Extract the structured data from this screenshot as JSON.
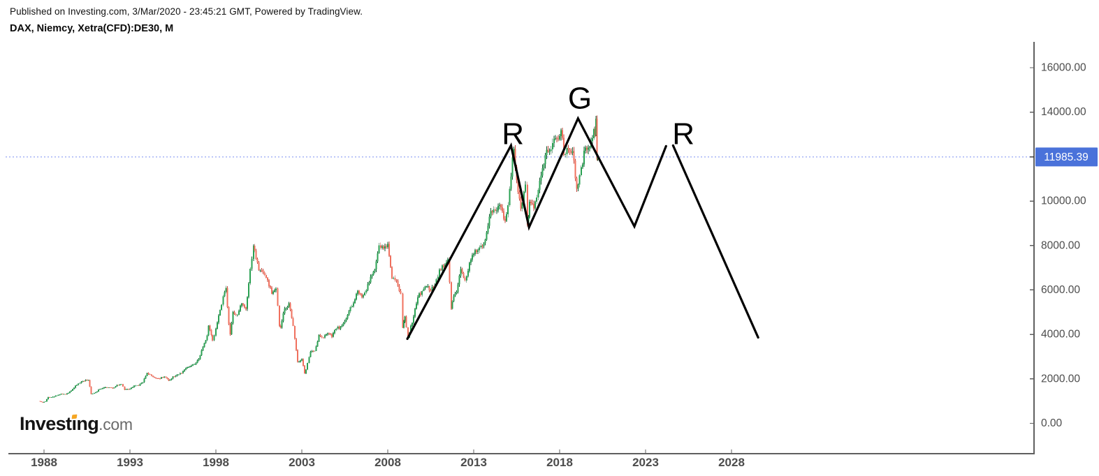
{
  "header": {
    "published_line": "Published on Investing.com, 3/Mar/2020 - 23:45:21 GMT, Powered by TradingView.",
    "symbol_line": "DAX, Niemcy, Xetra(CFD):DE30, M"
  },
  "logo": {
    "prefix": "Invest",
    "dotless_i": "ı",
    "rest": "ng",
    "suffix": ".com"
  },
  "chart_data": {
    "type": "candlestick",
    "title": "DAX, Niemcy, Xetra(CFD):DE30, M",
    "timeframe": "Monthly",
    "last_price": 11985.39,
    "last_price_label": "11985.39",
    "y_axis": {
      "range": [
        0,
        17200
      ],
      "ticks": [
        {
          "value": 16000,
          "label": "16000.00"
        },
        {
          "value": 14000,
          "label": "14000.00"
        },
        {
          "value": 10000,
          "label": "10000.00"
        },
        {
          "value": 8000,
          "label": "8000.00"
        },
        {
          "value": 6000,
          "label": "6000.00"
        },
        {
          "value": 4000,
          "label": "4000.00"
        },
        {
          "value": 2000,
          "label": "2000.00"
        },
        {
          "value": 0,
          "label": "0.00"
        }
      ]
    },
    "x_axis": {
      "tick_years": [
        1988,
        1993,
        1998,
        2003,
        2008,
        2013,
        2018,
        2023,
        2028
      ]
    },
    "anchors_close": [
      [
        1987.7,
        1000
      ],
      [
        1987.92,
        940
      ],
      [
        1988.08,
        980
      ],
      [
        1988.25,
        1180
      ],
      [
        1988.5,
        1190
      ],
      [
        1988.75,
        1250
      ],
      [
        1989.0,
        1328
      ],
      [
        1989.25,
        1300
      ],
      [
        1989.5,
        1430
      ],
      [
        1989.75,
        1600
      ],
      [
        1990.0,
        1790
      ],
      [
        1990.25,
        1900
      ],
      [
        1990.58,
        1950
      ],
      [
        1990.75,
        1320
      ],
      [
        1991.0,
        1398
      ],
      [
        1991.25,
        1540
      ],
      [
        1991.5,
        1620
      ],
      [
        1991.75,
        1610
      ],
      [
        1992.0,
        1578
      ],
      [
        1992.25,
        1720
      ],
      [
        1992.5,
        1760
      ],
      [
        1992.7,
        1510
      ],
      [
        1993.0,
        1545
      ],
      [
        1993.25,
        1690
      ],
      [
        1993.5,
        1700
      ],
      [
        1993.75,
        1850
      ],
      [
        1994.0,
        2267
      ],
      [
        1994.25,
        2133
      ],
      [
        1994.5,
        2025
      ],
      [
        1994.75,
        2012
      ],
      [
        1995.0,
        2107
      ],
      [
        1995.25,
        1923
      ],
      [
        1995.5,
        2100
      ],
      [
        1995.75,
        2187
      ],
      [
        1996.0,
        2254
      ],
      [
        1996.25,
        2486
      ],
      [
        1996.5,
        2561
      ],
      [
        1996.75,
        2652
      ],
      [
        1997.0,
        2889
      ],
      [
        1997.25,
        3429
      ],
      [
        1997.5,
        3953
      ],
      [
        1997.58,
        4400
      ],
      [
        1997.8,
        3730
      ],
      [
        1998.0,
        4250
      ],
      [
        1998.25,
        5097
      ],
      [
        1998.5,
        5897
      ],
      [
        1998.58,
        6100
      ],
      [
        1998.75,
        4474
      ],
      [
        1998.83,
        4000
      ],
      [
        1999.0,
        5002
      ],
      [
        1999.25,
        4884
      ],
      [
        1999.5,
        5379
      ],
      [
        1999.75,
        5150
      ],
      [
        2000.0,
        6958
      ],
      [
        2000.2,
        8000
      ],
      [
        2000.33,
        7400
      ],
      [
        2000.5,
        6898
      ],
      [
        2000.75,
        6798
      ],
      [
        2001.0,
        6434
      ],
      [
        2001.25,
        5830
      ],
      [
        2001.5,
        6058
      ],
      [
        2001.7,
        4400
      ],
      [
        2001.75,
        4308
      ],
      [
        2002.0,
        5160
      ],
      [
        2002.25,
        5397
      ],
      [
        2002.5,
        4383
      ],
      [
        2002.75,
        2769
      ],
      [
        2003.0,
        2893
      ],
      [
        2003.17,
        2250
      ],
      [
        2003.25,
        2424
      ],
      [
        2003.5,
        3221
      ],
      [
        2003.75,
        3257
      ],
      [
        2004.0,
        3965
      ],
      [
        2004.25,
        3857
      ],
      [
        2004.5,
        4053
      ],
      [
        2004.75,
        3893
      ],
      [
        2005.0,
        4256
      ],
      [
        2005.25,
        4348
      ],
      [
        2005.5,
        4586
      ],
      [
        2005.75,
        5044
      ],
      [
        2006.0,
        5408
      ],
      [
        2006.25,
        5970
      ],
      [
        2006.5,
        5683
      ],
      [
        2006.75,
        6004
      ],
      [
        2007.0,
        6597
      ],
      [
        2007.25,
        6917
      ],
      [
        2007.5,
        8007
      ],
      [
        2007.75,
        7861
      ],
      [
        2008.0,
        8067
      ],
      [
        2008.25,
        6535
      ],
      [
        2008.5,
        6418
      ],
      [
        2008.75,
        5831
      ],
      [
        2008.87,
        4300
      ],
      [
        2009.0,
        4810
      ],
      [
        2009.17,
        3850
      ],
      [
        2009.25,
        4085
      ],
      [
        2009.5,
        4809
      ],
      [
        2009.75,
        5675
      ],
      [
        2010.0,
        5957
      ],
      [
        2010.25,
        6154
      ],
      [
        2010.5,
        5966
      ],
      [
        2010.75,
        6229
      ],
      [
        2011.0,
        6914
      ],
      [
        2011.25,
        7041
      ],
      [
        2011.5,
        7376
      ],
      [
        2011.7,
        5150
      ],
      [
        2011.75,
        5502
      ],
      [
        2012.0,
        5898
      ],
      [
        2012.25,
        6947
      ],
      [
        2012.5,
        6416
      ],
      [
        2012.75,
        7216
      ],
      [
        2013.0,
        7612
      ],
      [
        2013.25,
        7795
      ],
      [
        2013.5,
        7959
      ],
      [
        2013.75,
        8594
      ],
      [
        2014.0,
        9552
      ],
      [
        2014.25,
        9556
      ],
      [
        2014.5,
        9833
      ],
      [
        2014.83,
        9100
      ],
      [
        2015.0,
        9806
      ],
      [
        2015.25,
        11966
      ],
      [
        2015.33,
        12350
      ],
      [
        2015.5,
        10945
      ],
      [
        2015.75,
        9660
      ],
      [
        2016.0,
        10743
      ],
      [
        2016.12,
        8900
      ],
      [
        2016.25,
        9966
      ],
      [
        2016.5,
        9680
      ],
      [
        2016.75,
        10511
      ],
      [
        2017.0,
        11481
      ],
      [
        2017.25,
        12313
      ],
      [
        2017.5,
        12325
      ],
      [
        2017.75,
        12829
      ],
      [
        2018.0,
        12918
      ],
      [
        2018.08,
        13190
      ],
      [
        2018.25,
        12097
      ],
      [
        2018.5,
        12306
      ],
      [
        2018.75,
        12247
      ],
      [
        2019.0,
        10559
      ],
      [
        2019.25,
        11526
      ],
      [
        2019.5,
        12399
      ],
      [
        2019.75,
        12428
      ],
      [
        2020.0,
        13249
      ],
      [
        2020.08,
        12982
      ],
      [
        2020.12,
        13700
      ],
      [
        2020.17,
        11890
      ],
      [
        2020.21,
        11985.39
      ]
    ],
    "trendlines": [
      {
        "name": "head-and-shoulders-left",
        "points": [
          [
            2009.14,
            3800
          ],
          [
            2015.17,
            12500
          ],
          [
            2016.22,
            8820
          ],
          [
            2019.07,
            13720
          ],
          [
            2022.35,
            8860
          ],
          [
            2024.19,
            12470
          ]
        ]
      },
      {
        "name": "head-and-shoulders-right",
        "points": [
          [
            2024.6,
            12500
          ],
          [
            2029.55,
            3860
          ]
        ]
      }
    ],
    "annotations": [
      {
        "text": "R",
        "t": 2015.28,
        "value": 13020
      },
      {
        "text": "G",
        "t": 2019.18,
        "value": 14620
      },
      {
        "text": "R",
        "t": 2025.2,
        "value": 13020
      }
    ],
    "colors": {
      "up_body": "#29a152",
      "up_wick": "#0d5a2e",
      "down_body": "#f0705e",
      "down_wick": "#c2453a",
      "trendline": "#000000",
      "price_line": "#7b8ff0",
      "badge_bg": "#4a72da",
      "badge_text": "#ffffff",
      "axis_line": "#5f5f5f",
      "tick_label": "#4c4c4c"
    },
    "legend_position": "none",
    "grid": false
  }
}
